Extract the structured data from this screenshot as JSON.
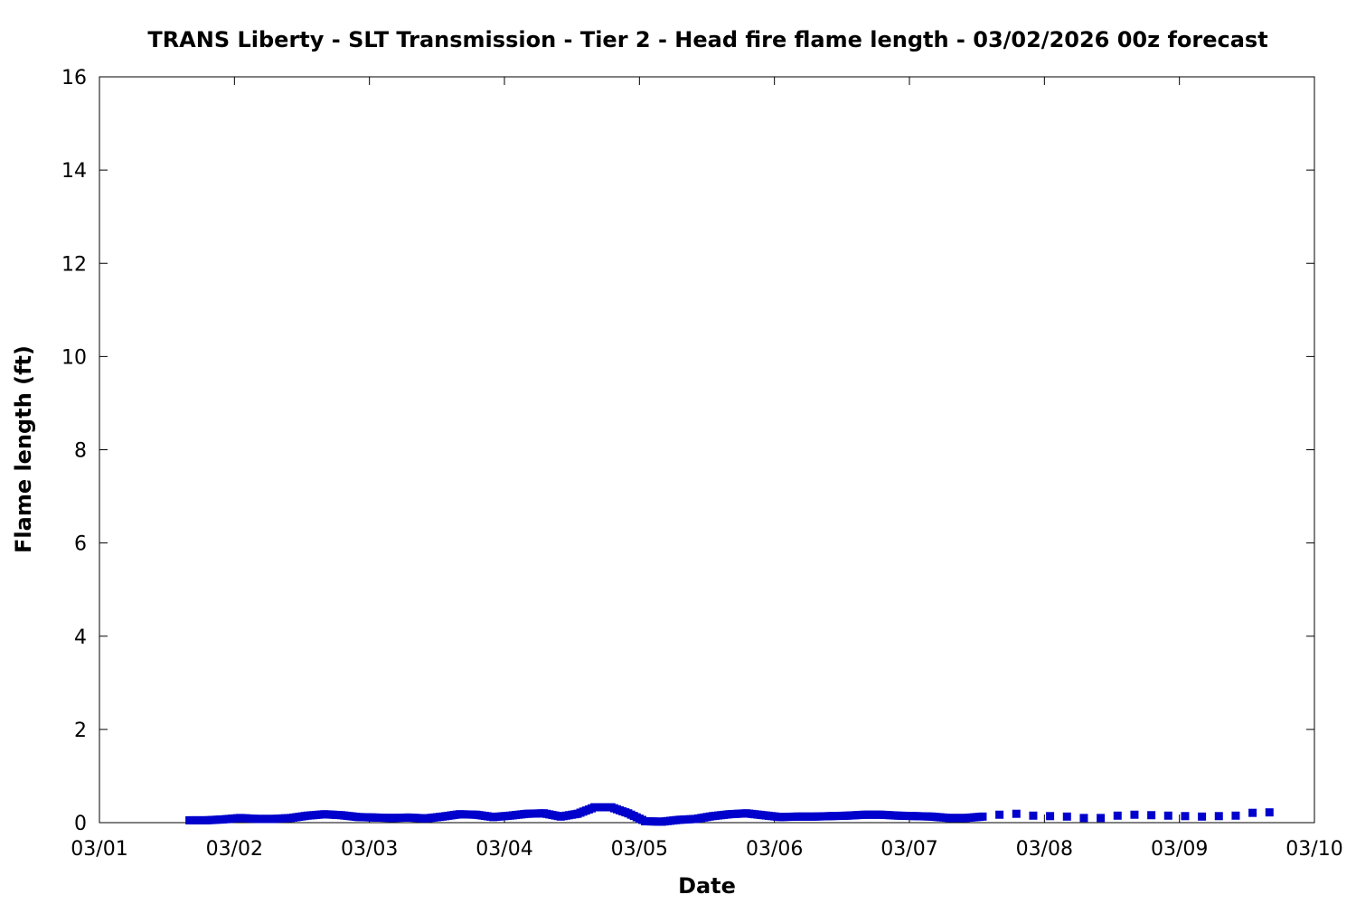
{
  "chart_data": {
    "type": "scatter",
    "title": "TRANS Liberty - SLT Transmission - Tier 2 - Head fire flame length - 03/02/2026 00z forecast",
    "xlabel": "Date",
    "ylabel": "Flame length (ft)",
    "x_unit": "days since 03/01",
    "xlim": [
      0,
      9
    ],
    "ylim": [
      0,
      16
    ],
    "x_ticks": [
      "03/01",
      "03/02",
      "03/03",
      "03/04",
      "03/05",
      "03/06",
      "03/07",
      "03/08",
      "03/09",
      "03/10"
    ],
    "y_ticks": [
      "0",
      "2",
      "4",
      "6",
      "8",
      "10",
      "12",
      "14",
      "16"
    ],
    "grid": false,
    "marker_color": "#0000cc",
    "series": [
      {
        "name": "",
        "x": [
          0.667,
          0.792,
          0.917,
          1.042,
          1.167,
          1.292,
          1.417,
          1.542,
          1.667,
          1.792,
          1.917,
          2.042,
          2.167,
          2.292,
          2.417,
          2.542,
          2.667,
          2.792,
          2.917,
          3.042,
          3.167,
          3.292,
          3.417,
          3.542,
          3.667,
          3.792,
          3.917,
          4.042,
          4.167,
          4.292,
          4.417,
          4.542,
          4.667,
          4.792,
          4.917,
          5.042,
          5.167,
          5.292,
          5.417,
          5.542,
          5.667,
          5.792,
          5.917,
          6.042,
          6.167,
          6.292,
          6.417,
          6.542,
          6.667,
          6.792,
          6.917,
          7.042,
          7.167,
          7.292,
          7.417,
          7.542,
          7.667,
          7.792,
          7.917,
          8.042,
          8.167,
          8.292,
          8.417,
          8.542,
          8.667
        ],
        "y": [
          0.05,
          0.05,
          0.07,
          0.1,
          0.08,
          0.08,
          0.1,
          0.15,
          0.18,
          0.16,
          0.12,
          0.11,
          0.1,
          0.11,
          0.09,
          0.13,
          0.18,
          0.17,
          0.12,
          0.15,
          0.19,
          0.2,
          0.13,
          0.19,
          0.33,
          0.33,
          0.2,
          0.03,
          0.02,
          0.06,
          0.08,
          0.14,
          0.18,
          0.2,
          0.16,
          0.12,
          0.13,
          0.13,
          0.14,
          0.15,
          0.17,
          0.17,
          0.15,
          0.14,
          0.13,
          0.1,
          0.1,
          0.13,
          0.17,
          0.19,
          0.15,
          0.14,
          0.13,
          0.1,
          0.1,
          0.15,
          0.17,
          0.16,
          0.15,
          0.14,
          0.13,
          0.14,
          0.15,
          0.21,
          0.22
        ]
      }
    ]
  }
}
